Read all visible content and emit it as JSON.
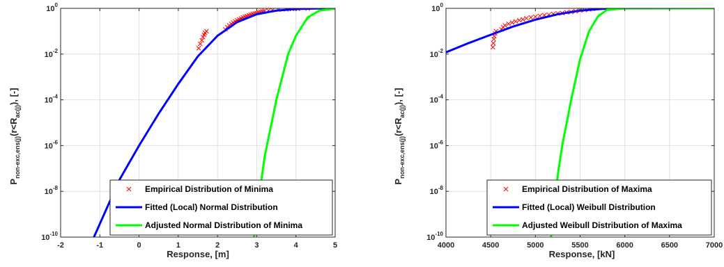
{
  "chart_data": [
    {
      "type": "line",
      "xlabel": "Response, [m]",
      "ylabel": "P non-exc,ens(j)(r<R ac(j)), [-]",
      "ylabel_parts": {
        "main": "P",
        "sub": "non-exc,ens(j)",
        "mid": "(r<R",
        "sub2": "ac(j)",
        "end": "), [-]"
      },
      "y_scale": "log",
      "xlim": [
        -2,
        5
      ],
      "ylim": [
        1e-10,
        1
      ],
      "x_ticks": [
        -2,
        -1,
        0,
        1,
        2,
        3,
        4,
        5
      ],
      "y_ticks": [
        1e-10,
        1e-08,
        1e-06,
        0.0001,
        0.01,
        1
      ],
      "y_tick_labels": [
        {
          "base": "10",
          "exp": "-10"
        },
        {
          "base": "10",
          "exp": "-8"
        },
        {
          "base": "10",
          "exp": "-6"
        },
        {
          "base": "10",
          "exp": "-4"
        },
        {
          "base": "10",
          "exp": "-2"
        },
        {
          "base": "10",
          "exp": "0"
        }
      ],
      "grid": true,
      "legend_position": "bottom-right",
      "series": [
        {
          "name": "Empirical Distribution of Minima",
          "kind": "scatter",
          "marker": "x",
          "color": "#ff0000",
          "x": [
            1.52,
            1.56,
            1.6,
            1.63,
            1.66,
            1.68,
            1.72,
            2.2,
            2.25,
            2.3,
            2.35,
            2.4,
            2.45,
            2.5,
            2.55,
            2.6,
            2.65,
            2.7,
            2.75,
            2.8,
            2.85,
            2.9,
            2.95,
            3.0,
            3.05,
            3.1,
            3.15,
            3.2,
            3.3,
            3.4,
            3.55,
            3.75,
            3.9,
            4.05,
            4.3
          ],
          "y": [
            0.018,
            0.028,
            0.04,
            0.055,
            0.07,
            0.085,
            0.1,
            0.12,
            0.15,
            0.18,
            0.21,
            0.24,
            0.27,
            0.3,
            0.33,
            0.36,
            0.4,
            0.43,
            0.46,
            0.5,
            0.53,
            0.57,
            0.6,
            0.63,
            0.67,
            0.7,
            0.73,
            0.77,
            0.8,
            0.83,
            0.87,
            0.9,
            0.93,
            0.95,
            0.97
          ]
        },
        {
          "name": "Fitted (Local) Normal Distribution",
          "kind": "line",
          "color": "#0000ff",
          "x": [
            -1.15,
            -0.5,
            0.0,
            0.5,
            1.0,
            1.5,
            2.0,
            2.5,
            3.0,
            3.5,
            4.0,
            4.5,
            5.0
          ],
          "y": [
            1e-10,
            3.2e-08,
            1e-06,
            2.5e-05,
            0.0005,
            0.008,
            0.063,
            0.25,
            0.55,
            0.8,
            0.93,
            0.98,
            0.995
          ]
        },
        {
          "name": "Adjusted Normal Distribution of Minima",
          "kind": "line",
          "color": "#00ff00",
          "x": [
            2.93,
            3.0,
            3.2,
            3.5,
            3.8,
            4.0,
            4.3,
            4.6,
            5.0
          ],
          "y": [
            1e-10,
            1e-09,
            3.2e-07,
            0.0001,
            0.01,
            0.063,
            0.4,
            0.8,
            0.98
          ]
        }
      ]
    },
    {
      "type": "line",
      "xlabel": "Response, [kN]",
      "ylabel": "P non-exc,ens(j)(r<R ac(j)), [-]",
      "ylabel_parts": {
        "main": "P",
        "sub": "non-exc,ens(j)",
        "mid": "(r<R",
        "sub2": "ac(j)",
        "end": "), [-]"
      },
      "y_scale": "log",
      "xlim": [
        4000,
        7000
      ],
      "ylim": [
        1e-10,
        1
      ],
      "x_ticks": [
        4000,
        4500,
        5000,
        5500,
        6000,
        6500,
        7000
      ],
      "y_ticks": [
        1e-10,
        1e-08,
        1e-06,
        0.0001,
        0.01,
        1
      ],
      "y_tick_labels": [
        {
          "base": "10",
          "exp": "-10"
        },
        {
          "base": "10",
          "exp": "-8"
        },
        {
          "base": "10",
          "exp": "-6"
        },
        {
          "base": "10",
          "exp": "-4"
        },
        {
          "base": "10",
          "exp": "-2"
        },
        {
          "base": "10",
          "exp": "0"
        }
      ],
      "grid": true,
      "legend_position": "bottom-right",
      "series": [
        {
          "name": "Empirical Distribution of Maxima",
          "kind": "scatter",
          "marker": "x",
          "color": "#ff0000",
          "x": [
            4525,
            4530,
            4535,
            4540,
            4550,
            4560,
            4620,
            4640,
            4660,
            4700,
            4740,
            4780,
            4820,
            4860,
            4900,
            4950,
            5000,
            5050,
            5100,
            5150,
            5200,
            5250,
            5300,
            5350,
            5400,
            5450,
            5500,
            5550,
            5600,
            5640
          ],
          "y": [
            0.02,
            0.03,
            0.045,
            0.06,
            0.08,
            0.1,
            0.12,
            0.15,
            0.18,
            0.21,
            0.24,
            0.27,
            0.3,
            0.33,
            0.37,
            0.4,
            0.43,
            0.47,
            0.5,
            0.53,
            0.57,
            0.6,
            0.63,
            0.67,
            0.7,
            0.75,
            0.8,
            0.85,
            0.9,
            0.95
          ]
        },
        {
          "name": "Fitted (Local) Weibull Distribution",
          "kind": "line",
          "color": "#0000ff",
          "x": [
            4000,
            4250,
            4500,
            4750,
            5000,
            5250,
            5500,
            5750,
            6000,
            7000
          ],
          "y": [
            0.012,
            0.03,
            0.07,
            0.16,
            0.32,
            0.55,
            0.8,
            0.95,
            0.995,
            1.0
          ]
        },
        {
          "name": "Adjusted Weibull Distribution of Maxima",
          "kind": "line",
          "color": "#00ff00",
          "x": [
            5175,
            5200,
            5250,
            5300,
            5400,
            5500,
            5600,
            5700,
            5800,
            6000,
            7000
          ],
          "y": [
            1e-10,
            1e-09,
            5e-08,
            1e-06,
            0.0001,
            0.006,
            0.1,
            0.45,
            0.85,
            0.999,
            1.0
          ]
        }
      ]
    }
  ]
}
